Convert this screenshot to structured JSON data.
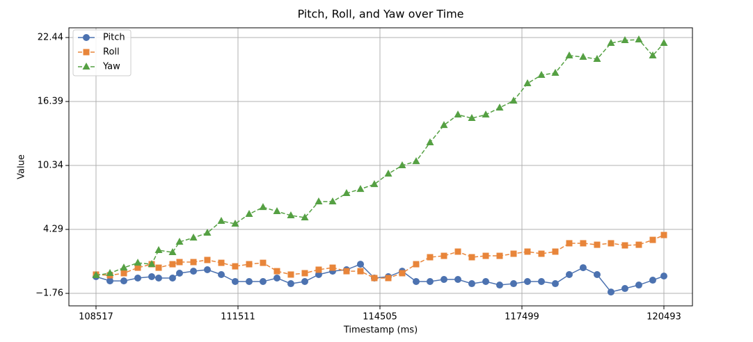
{
  "chart_data": {
    "type": "line",
    "title": "Pitch, Roll, and Yaw over Time",
    "x_label": "Timestamp (ms)",
    "y_label": "Value",
    "x": [
      108517,
      108811,
      109104,
      109398,
      109691,
      109838,
      110131,
      110278,
      110572,
      110865,
      111159,
      111452,
      111746,
      112039,
      112333,
      112626,
      112920,
      113213,
      113507,
      113800,
      114094,
      114387,
      114681,
      114974,
      115268,
      115561,
      115855,
      116149,
      116442,
      116736,
      117029,
      117323,
      117616,
      117910,
      118203,
      118497,
      118790,
      119084,
      119377,
      119671,
      119964,
      120258,
      120493
    ],
    "series": [
      {
        "name": "Pitch",
        "color": "#4c72b0",
        "marker": "circle",
        "linestyle": "solid",
        "values": [
          -0.18,
          -0.58,
          -0.58,
          -0.31,
          -0.18,
          -0.31,
          -0.31,
          0.15,
          0.34,
          0.48,
          0.02,
          -0.64,
          -0.64,
          -0.64,
          -0.31,
          -0.84,
          -0.64,
          0.02,
          0.34,
          0.48,
          1.0,
          -0.31,
          -0.18,
          0.34,
          -0.64,
          -0.64,
          -0.44,
          -0.44,
          -0.84,
          -0.64,
          -0.97,
          -0.84,
          -0.64,
          -0.64,
          -0.84,
          0.02,
          0.67,
          0.02,
          -1.63,
          -1.3,
          -0.97,
          -0.51,
          -0.12
        ]
      },
      {
        "name": "Roll",
        "color": "#e8853a",
        "marker": "square",
        "linestyle": "dashed",
        "values": [
          0.02,
          -0.05,
          0.15,
          0.67,
          1.0,
          0.67,
          1.0,
          1.2,
          1.2,
          1.4,
          1.13,
          0.8,
          1.0,
          1.13,
          0.34,
          0.02,
          0.15,
          0.48,
          0.67,
          0.34,
          0.34,
          -0.31,
          -0.31,
          0.15,
          1.0,
          1.66,
          1.79,
          2.19,
          1.66,
          1.79,
          1.79,
          1.99,
          2.19,
          1.99,
          2.19,
          2.98,
          2.98,
          2.84,
          2.98,
          2.78,
          2.84,
          3.3,
          3.76
        ]
      },
      {
        "name": "Yaw",
        "color": "#55a043",
        "marker": "triangle",
        "linestyle": "dashed",
        "values": [
          -0.05,
          0.15,
          0.67,
          1.13,
          1.0,
          2.32,
          2.12,
          3.11,
          3.5,
          3.96,
          5.08,
          4.82,
          5.74,
          6.39,
          6.0,
          5.61,
          5.41,
          6.92,
          6.92,
          7.71,
          8.1,
          8.56,
          9.55,
          10.34,
          10.73,
          12.51,
          14.15,
          15.14,
          14.81,
          15.14,
          15.8,
          16.46,
          18.1,
          18.89,
          19.09,
          20.73,
          20.6,
          20.4,
          21.91,
          22.18,
          22.24,
          20.73,
          21.91
        ]
      }
    ],
    "xlim": [
      107945,
      121095
    ],
    "xticks": [
      108517,
      111511,
      114505,
      117499,
      120493
    ],
    "ylim": [
      -2.94,
      23.36
    ],
    "yticks": [
      {
        "value": -1.76,
        "label": "−1.76"
      },
      4.29,
      10.34,
      16.39,
      22.44
    ],
    "grid": true,
    "legend": "upper left"
  }
}
